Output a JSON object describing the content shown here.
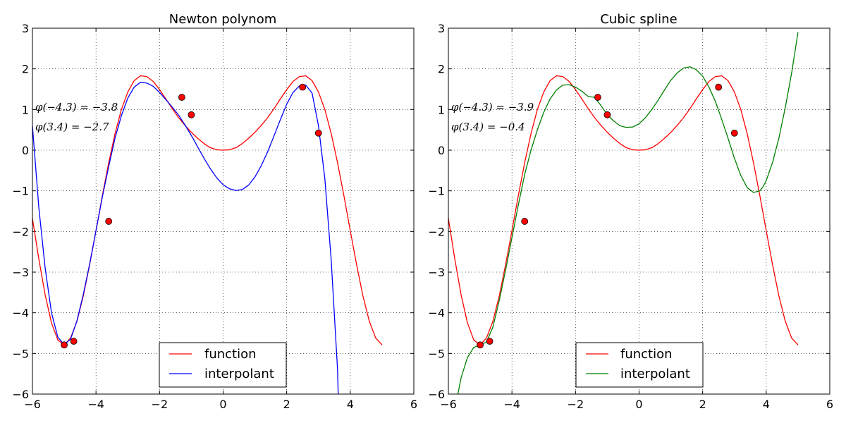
{
  "chart_data": [
    {
      "type": "line",
      "title": "Newton polynom",
      "xlim": [
        -6,
        6
      ],
      "ylim": [
        -6,
        3
      ],
      "xticks": [
        -6,
        -4,
        -2,
        0,
        2,
        4,
        6
      ],
      "yticks": [
        -6,
        -5,
        -4,
        -3,
        -2,
        -1,
        0,
        1,
        2,
        3
      ],
      "grid": true,
      "legend_position": "bottom-center",
      "annotations": [
        "φ(−4.3) = −3.8",
        "φ(3.4) = −2.7"
      ],
      "series": [
        {
          "name": "function",
          "color": "#ff0000",
          "x": [
            -6.0,
            -5.8,
            -5.6,
            -5.4,
            -5.2,
            -5.0,
            -4.8,
            -4.6,
            -4.4,
            -4.2,
            -4.0,
            -3.8,
            -3.6,
            -3.4,
            -3.2,
            -3.0,
            -2.8,
            -2.6,
            -2.4,
            -2.2,
            -2.0,
            -1.8,
            -1.6,
            -1.4,
            -1.2,
            -1.0,
            -0.8,
            -0.6,
            -0.4,
            -0.2,
            0.0,
            0.2,
            0.4,
            0.6,
            0.8,
            1.0,
            1.2,
            1.4,
            1.6,
            1.8,
            2.0,
            2.2,
            2.4,
            2.6,
            2.8,
            3.0,
            3.2,
            3.4,
            3.6,
            3.8,
            4.0,
            4.2,
            4.4,
            4.6,
            4.8,
            5.0
          ],
          "y": [
            -1.68,
            -2.67,
            -3.56,
            -4.25,
            -4.67,
            -4.79,
            -4.62,
            -4.21,
            -3.59,
            -2.82,
            -1.98,
            -1.12,
            -0.31,
            0.41,
            1.0,
            1.43,
            1.71,
            1.83,
            1.81,
            1.69,
            1.49,
            1.26,
            1.02,
            0.8,
            0.61,
            0.44,
            0.29,
            0.16,
            0.06,
            0.01,
            0.0,
            0.01,
            0.06,
            0.16,
            0.29,
            0.44,
            0.61,
            0.8,
            1.02,
            1.26,
            1.49,
            1.69,
            1.81,
            1.83,
            1.71,
            1.43,
            1.0,
            0.41,
            -0.31,
            -1.12,
            -1.98,
            -2.82,
            -3.59,
            -4.21,
            -4.62,
            -4.79
          ]
        },
        {
          "name": "interpolant",
          "color": "#0000ff",
          "x": [
            -6.0,
            -5.8,
            -5.6,
            -5.4,
            -5.2,
            -5.0,
            -4.8,
            -4.6,
            -4.4,
            -4.2,
            -4.0,
            -3.8,
            -3.6,
            -3.4,
            -3.2,
            -3.0,
            -2.8,
            -2.6,
            -2.4,
            -2.2,
            -2.0,
            -1.8,
            -1.6,
            -1.4,
            -1.2,
            -1.0,
            -0.8,
            -0.6,
            -0.4,
            -0.2,
            0.0,
            0.2,
            0.4,
            0.6,
            0.8,
            1.0,
            1.2,
            1.4,
            1.6,
            1.8,
            2.0,
            2.2,
            2.4,
            2.6,
            2.8,
            3.0,
            3.2,
            3.4,
            3.6,
            3.62
          ],
          "y": [
            0.6,
            -1.4,
            -2.9,
            -4.0,
            -4.6,
            -4.78,
            -4.65,
            -4.2,
            -3.55,
            -2.8,
            -1.98,
            -1.15,
            -0.4,
            0.3,
            0.85,
            1.28,
            1.55,
            1.67,
            1.65,
            1.57,
            1.42,
            1.24,
            1.06,
            0.86,
            0.62,
            0.36,
            0.08,
            -0.2,
            -0.46,
            -0.68,
            -0.85,
            -0.95,
            -0.99,
            -0.97,
            -0.86,
            -0.66,
            -0.38,
            -0.04,
            0.35,
            0.75,
            1.13,
            1.42,
            1.58,
            1.6,
            1.4,
            0.6,
            -0.7,
            -2.7,
            -5.4,
            -6.0
          ]
        }
      ],
      "points": {
        "color": "#ff0000",
        "x": [
          -5.0,
          -4.7,
          -3.6,
          -1.3,
          -1.0,
          2.5,
          3.0
        ],
        "y": [
          -4.79,
          -4.7,
          -1.75,
          1.3,
          0.87,
          1.55,
          0.42
        ]
      }
    },
    {
      "type": "line",
      "title": "Cubic spline",
      "xlim": [
        -6,
        6
      ],
      "ylim": [
        -6,
        3
      ],
      "xticks": [
        -6,
        -4,
        -2,
        0,
        2,
        4,
        6
      ],
      "yticks": [
        -6,
        -5,
        -4,
        -3,
        -2,
        -1,
        0,
        1,
        2,
        3
      ],
      "grid": true,
      "legend_position": "bottom-center",
      "annotations": [
        "φ(−4.3) = −3.9",
        "φ(3.4) = −0.4"
      ],
      "series": [
        {
          "name": "function",
          "color": "#ff0000",
          "x": [
            -6.0,
            -5.8,
            -5.6,
            -5.4,
            -5.2,
            -5.0,
            -4.8,
            -4.6,
            -4.4,
            -4.2,
            -4.0,
            -3.8,
            -3.6,
            -3.4,
            -3.2,
            -3.0,
            -2.8,
            -2.6,
            -2.4,
            -2.2,
            -2.0,
            -1.8,
            -1.6,
            -1.4,
            -1.2,
            -1.0,
            -0.8,
            -0.6,
            -0.4,
            -0.2,
            0.0,
            0.2,
            0.4,
            0.6,
            0.8,
            1.0,
            1.2,
            1.4,
            1.6,
            1.8,
            2.0,
            2.2,
            2.4,
            2.6,
            2.8,
            3.0,
            3.2,
            3.4,
            3.6,
            3.8,
            4.0,
            4.2,
            4.4,
            4.6,
            4.8,
            5.0
          ],
          "y": [
            -1.68,
            -2.67,
            -3.56,
            -4.25,
            -4.67,
            -4.79,
            -4.62,
            -4.21,
            -3.59,
            -2.82,
            -1.98,
            -1.12,
            -0.31,
            0.41,
            1.0,
            1.43,
            1.71,
            1.83,
            1.81,
            1.69,
            1.49,
            1.26,
            1.02,
            0.8,
            0.61,
            0.44,
            0.29,
            0.16,
            0.06,
            0.01,
            0.0,
            0.01,
            0.06,
            0.16,
            0.29,
            0.44,
            0.61,
            0.8,
            1.02,
            1.26,
            1.49,
            1.69,
            1.81,
            1.83,
            1.71,
            1.43,
            1.0,
            0.41,
            -0.31,
            -1.12,
            -1.98,
            -2.82,
            -3.59,
            -4.21,
            -4.62,
            -4.79
          ]
        },
        {
          "name": "interpolant",
          "color": "#008000",
          "x": [
            -5.7,
            -5.6,
            -5.4,
            -5.2,
            -5.0,
            -4.8,
            -4.6,
            -4.4,
            -4.2,
            -4.0,
            -3.8,
            -3.6,
            -3.4,
            -3.2,
            -3.0,
            -2.8,
            -2.6,
            -2.4,
            -2.2,
            -2.0,
            -1.8,
            -1.6,
            -1.4,
            -1.2,
            -1.0,
            -0.8,
            -0.6,
            -0.4,
            -0.2,
            0.0,
            0.2,
            0.4,
            0.6,
            0.8,
            1.0,
            1.2,
            1.4,
            1.6,
            1.8,
            2.0,
            2.2,
            2.4,
            2.6,
            2.8,
            3.0,
            3.2,
            3.4,
            3.6,
            3.8,
            3.9,
            4.0,
            4.2,
            4.4,
            4.6,
            4.8,
            5.0
          ],
          "y": [
            -6.0,
            -5.6,
            -5.1,
            -4.85,
            -4.79,
            -4.72,
            -4.35,
            -3.7,
            -2.95,
            -2.15,
            -1.35,
            -0.6,
            0.0,
            0.5,
            0.93,
            1.26,
            1.48,
            1.6,
            1.61,
            1.55,
            1.45,
            1.32,
            1.3,
            1.1,
            0.87,
            0.72,
            0.6,
            0.56,
            0.57,
            0.65,
            0.8,
            1.0,
            1.23,
            1.48,
            1.72,
            1.9,
            2.02,
            2.05,
            1.98,
            1.82,
            1.55,
            1.2,
            0.76,
            0.29,
            -0.2,
            -0.62,
            -0.92,
            -1.04,
            -1.0,
            -0.9,
            -0.75,
            -0.3,
            0.3,
            1.05,
            1.9,
            2.9
          ]
        }
      ],
      "points": {
        "color": "#ff0000",
        "x": [
          -5.0,
          -4.7,
          -3.6,
          -1.3,
          -1.0,
          2.5,
          3.0
        ],
        "y": [
          -4.79,
          -4.7,
          -1.75,
          1.3,
          0.87,
          1.55,
          0.42
        ]
      }
    }
  ]
}
